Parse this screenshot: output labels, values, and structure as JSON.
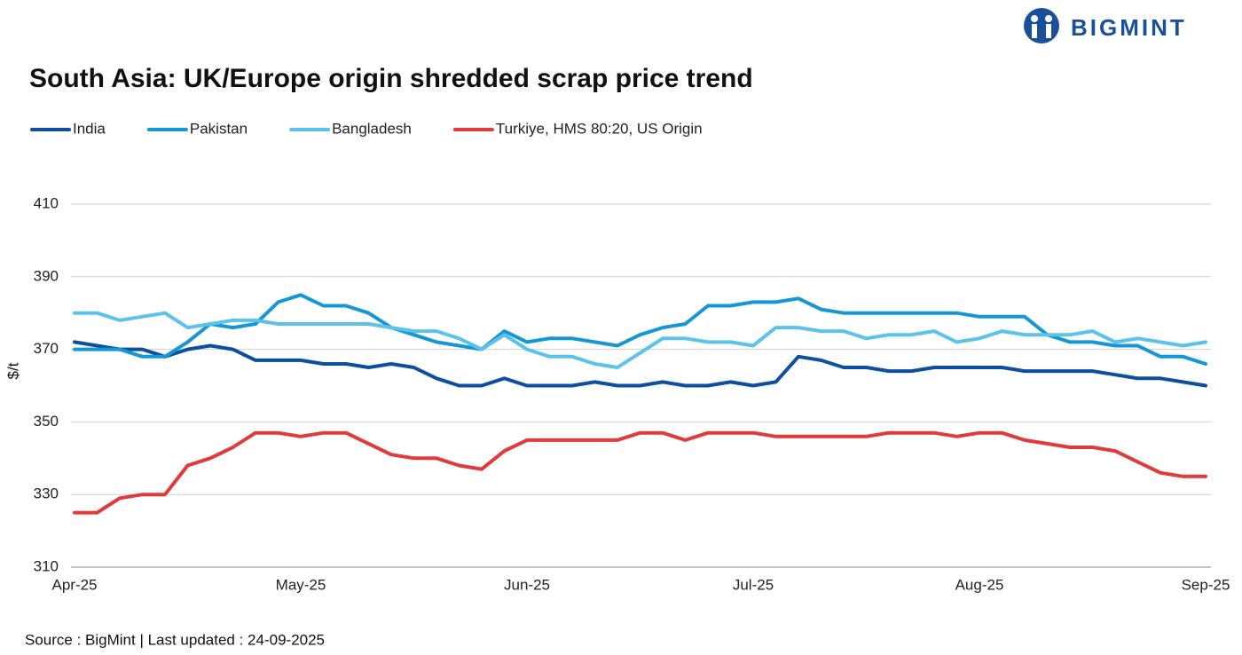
{
  "brand": "BIGMINT",
  "chart_data": {
    "type": "line",
    "title": "South Asia: UK/Europe origin shredded scrap price trend",
    "y_label": "$/t",
    "source": "Source : BigMint | Last updated : 24-09-2025",
    "categories": [
      "Apr-25",
      null,
      null,
      null,
      null,
      null,
      null,
      null,
      null,
      null,
      "May-25",
      null,
      null,
      null,
      null,
      null,
      null,
      null,
      null,
      null,
      "Jun-25",
      null,
      null,
      null,
      null,
      null,
      null,
      null,
      null,
      null,
      "Jul-25",
      null,
      null,
      null,
      null,
      null,
      null,
      null,
      null,
      null,
      "Aug-25",
      null,
      null,
      null,
      null,
      null,
      null,
      null,
      null,
      null,
      "Sep-25"
    ],
    "ylim": [
      310,
      410
    ],
    "yticks": [
      310,
      330,
      350,
      370,
      390,
      410
    ],
    "grid": true,
    "series": [
      {
        "name": "India",
        "color": "#0d4f9e",
        "values": [
          372,
          371,
          370,
          370,
          368,
          370,
          371,
          370,
          367,
          367,
          367,
          366,
          366,
          365,
          366,
          365,
          362,
          360,
          360,
          362,
          360,
          360,
          360,
          361,
          360,
          360,
          361,
          360,
          360,
          361,
          360,
          361,
          368,
          367,
          365,
          365,
          364,
          364,
          365,
          365,
          365,
          365,
          364,
          364,
          364,
          364,
          363,
          362,
          362,
          361,
          360
        ]
      },
      {
        "name": "Pakistan",
        "color": "#1497d4",
        "values": [
          370,
          370,
          370,
          368,
          368,
          372,
          377,
          376,
          377,
          383,
          385,
          382,
          382,
          380,
          376,
          374,
          372,
          371,
          370,
          375,
          372,
          373,
          373,
          372,
          371,
          374,
          376,
          377,
          382,
          382,
          383,
          383,
          384,
          381,
          380,
          380,
          380,
          380,
          380,
          380,
          379,
          379,
          379,
          374,
          372,
          372,
          371,
          371,
          368,
          368,
          366
        ]
      },
      {
        "name": "Bangladesh",
        "color": "#5bc2ec",
        "values": [
          380,
          380,
          378,
          379,
          380,
          376,
          377,
          378,
          378,
          377,
          377,
          377,
          377,
          377,
          376,
          375,
          375,
          373,
          370,
          374,
          370,
          368,
          368,
          366,
          365,
          369,
          373,
          373,
          372,
          372,
          371,
          376,
          376,
          375,
          375,
          373,
          374,
          374,
          375,
          372,
          373,
          375,
          374,
          374,
          374,
          375,
          372,
          373,
          372,
          371,
          372
        ]
      },
      {
        "name": "Turkiye, HMS 80:20, US Origin",
        "color": "#e03a3a",
        "values": [
          325,
          325,
          329,
          330,
          330,
          338,
          340,
          343,
          347,
          347,
          346,
          347,
          347,
          344,
          341,
          340,
          340,
          338,
          337,
          342,
          345,
          345,
          345,
          345,
          345,
          347,
          347,
          345,
          347,
          347,
          347,
          346,
          346,
          346,
          346,
          346,
          347,
          347,
          347,
          346,
          347,
          347,
          345,
          344,
          343,
          343,
          342,
          339,
          336,
          335,
          335
        ]
      }
    ]
  }
}
